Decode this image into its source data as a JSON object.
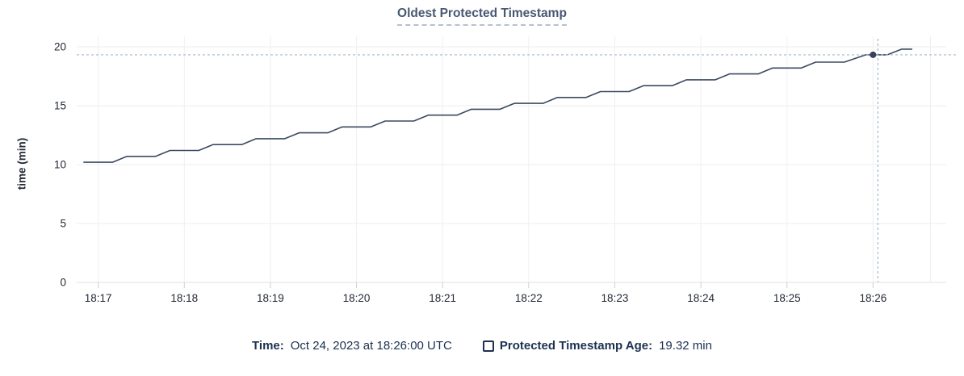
{
  "legend": {
    "time_label": "Time:",
    "time_value": "Oct 24, 2023 at 18:26:00 UTC",
    "series_label": "Protected Timestamp Age:",
    "series_value": "19.32 min",
    "checkbox_icon": "legend-checkbox-unchecked"
  },
  "colors": {
    "title": "#475872",
    "title_underline": "#b3c2d4",
    "line": "#3b4a60",
    "dot": "#36425a",
    "crosshair": "#a3bacc",
    "grid": "#ececec",
    "grid_vertical": "#f0f0f0",
    "baseline": "#e2e2e2",
    "tick": "#cfcfcf",
    "axis_text": "#242a35",
    "legend_text": "#1c3150"
  },
  "chart_data": {
    "type": "line",
    "title": "Oldest Protected Timestamp",
    "xlabel": "",
    "ylabel": "time (min)",
    "grid": true,
    "legend_position": "bottom",
    "y_ticks": [
      0,
      5,
      10,
      15,
      20
    ],
    "ylim": [
      0,
      20.9
    ],
    "x_tick_labels": [
      "18:17",
      "18:18",
      "18:19",
      "18:20",
      "18:21",
      "18:22",
      "18:23",
      "18:24",
      "18:25",
      "18:26"
    ],
    "xlim": [
      "18:16:45",
      "18:26:51"
    ],
    "x_edge_gridline": "18:26:40",
    "series": [
      {
        "name": "Protected Timestamp Age",
        "unit": "min",
        "points": [
          [
            "18:16:50",
            10.2
          ],
          [
            "18:17:10",
            10.2
          ],
          [
            "18:17:20",
            10.7
          ],
          [
            "18:17:40",
            10.7
          ],
          [
            "18:17:50",
            11.2
          ],
          [
            "18:18:10",
            11.2
          ],
          [
            "18:18:20",
            11.7
          ],
          [
            "18:18:40",
            11.7
          ],
          [
            "18:18:50",
            12.2
          ],
          [
            "18:19:10",
            12.2
          ],
          [
            "18:19:20",
            12.7
          ],
          [
            "18:19:40",
            12.7
          ],
          [
            "18:19:50",
            13.2
          ],
          [
            "18:20:10",
            13.2
          ],
          [
            "18:20:20",
            13.7
          ],
          [
            "18:20:40",
            13.7
          ],
          [
            "18:20:50",
            14.2
          ],
          [
            "18:21:10",
            14.2
          ],
          [
            "18:21:20",
            14.7
          ],
          [
            "18:21:40",
            14.7
          ],
          [
            "18:21:50",
            15.2
          ],
          [
            "18:22:10",
            15.2
          ],
          [
            "18:22:20",
            15.7
          ],
          [
            "18:22:40",
            15.7
          ],
          [
            "18:22:50",
            16.2
          ],
          [
            "18:23:10",
            16.2
          ],
          [
            "18:23:20",
            16.7
          ],
          [
            "18:23:40",
            16.7
          ],
          [
            "18:23:50",
            17.2
          ],
          [
            "18:24:10",
            17.2
          ],
          [
            "18:24:20",
            17.7
          ],
          [
            "18:24:40",
            17.7
          ],
          [
            "18:24:50",
            18.2
          ],
          [
            "18:25:10",
            18.2
          ],
          [
            "18:25:20",
            18.7
          ],
          [
            "18:25:40",
            18.7
          ],
          [
            "18:25:55",
            19.32
          ],
          [
            "18:26:10",
            19.32
          ],
          [
            "18:26:20",
            19.8
          ],
          [
            "18:26:27",
            19.8
          ]
        ]
      }
    ],
    "hover": {
      "time": "18:26:00",
      "value": 19.32
    }
  }
}
